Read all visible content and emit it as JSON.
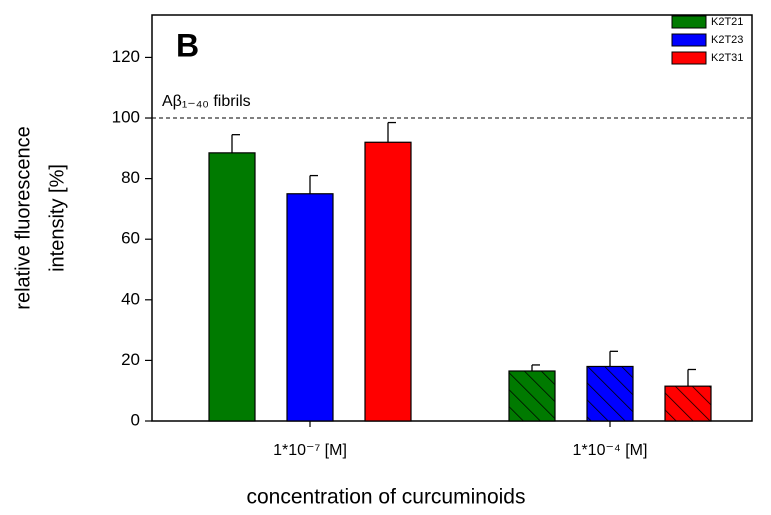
{
  "chart_data": {
    "type": "bar",
    "panel_label": "B",
    "categories": [
      "1*10⁻⁷ [M]",
      "1*10⁻⁴ [M]"
    ],
    "category_hatch": [
      false,
      true
    ],
    "series": [
      {
        "name": "K2T21",
        "color": "#007a00",
        "values": [
          88.5,
          16.5
        ],
        "errors": [
          6,
          2
        ]
      },
      {
        "name": "K2T23",
        "color": "#0000ff",
        "values": [
          75,
          18
        ],
        "errors": [
          6,
          5
        ]
      },
      {
        "name": "K2T31",
        "color": "#ff0000",
        "values": [
          92,
          11.5
        ],
        "errors": [
          6.5,
          5.5
        ]
      }
    ],
    "ylim": [
      0,
      134
    ],
    "yticks": [
      0,
      20,
      40,
      60,
      80,
      100,
      120
    ],
    "ylabel": [
      "relative fluorescence",
      "intensity [%]"
    ],
    "xlabel": "concentration of curcuminoids",
    "reference_line": {
      "value": 100,
      "label": "Aβ₁₋₄₀ fibrils"
    },
    "legend": "top-right"
  }
}
